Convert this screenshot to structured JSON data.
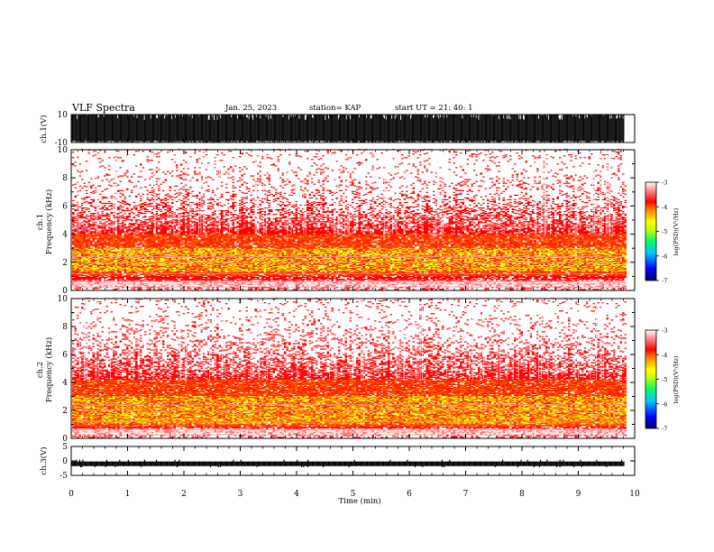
{
  "chart_data": {
    "type": "heatmap",
    "title": "VLF Spectra",
    "date": "Jan. 25, 2023",
    "station": "station= KAP",
    "start_ut": "start  UT =   21: 40: 1",
    "xlabel": "Time  (min)",
    "xlim": [
      0,
      10
    ],
    "x_ticks": [
      "0",
      "1",
      "2",
      "3",
      "4",
      "5",
      "6",
      "7",
      "8",
      "9",
      "10"
    ],
    "panels": [
      {
        "kind": "waveform",
        "ylabel": "ch.1(V)",
        "ylim": [
          -10,
          10
        ],
        "y_ticks": [
          "10",
          "-10"
        ],
        "style": "dense black bursts spanning most of the range"
      },
      {
        "kind": "spectrogram",
        "ylabel_top": "ch.1",
        "ylabel": "Frequency  (kHz)",
        "ylim": [
          0,
          10
        ],
        "y_ticks": [
          "0",
          "2",
          "4",
          "6",
          "8",
          "10"
        ],
        "band_kHz": [
          1.0,
          4.0
        ],
        "strong_band_kHz": [
          1.3,
          3.0
        ],
        "colorbar": {
          "label": "log(PSD)(V²/Hz)",
          "ticks": [
            "-3",
            "-4",
            "-5",
            "-6",
            "-7"
          ],
          "range": [
            -7,
            -3
          ]
        }
      },
      {
        "kind": "spectrogram",
        "ylabel_top": "ch.2",
        "ylabel": "Frequency  (kHz)",
        "ylim": [
          0,
          10
        ],
        "y_ticks": [
          "0",
          "2",
          "4",
          "6",
          "8",
          "10"
        ],
        "band_kHz": [
          0.8,
          4.2
        ],
        "strong_band_kHz": [
          1.0,
          3.0
        ],
        "colorbar": {
          "label": "log(PSD)(V²/Hz)",
          "ticks": [
            "-3",
            "-4",
            "-5",
            "-6",
            "-7"
          ],
          "range": [
            -7,
            -3
          ]
        }
      },
      {
        "kind": "waveform",
        "ylabel": "ch.3(V)",
        "ylim": [
          -5,
          5
        ],
        "y_ticks": [
          "5",
          "0",
          "-5"
        ],
        "style": "narrow black band around -1"
      }
    ],
    "colors": {
      "scale": [
        "#000080",
        "#0000ff",
        "#00c0ff",
        "#00ff80",
        "#c0ff00",
        "#ffff00",
        "#ff8000",
        "#ff0000",
        "#ffffff"
      ],
      "trace": "#000000"
    }
  }
}
